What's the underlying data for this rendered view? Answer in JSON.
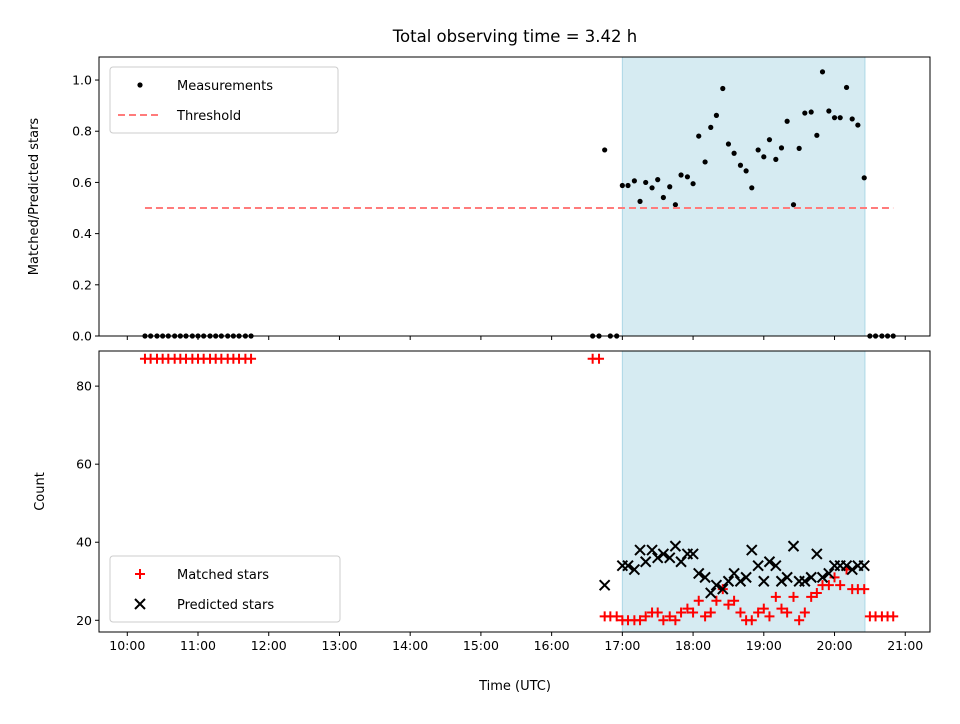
{
  "chart_data": {
    "title": "Total observing time = 3.42 h",
    "xlabel": "Time (UTC)",
    "x_unit": "hours UTC",
    "xlim": [
      9.6,
      21.35
    ],
    "x_ticks": [
      10,
      11,
      12,
      13,
      14,
      15,
      16,
      17,
      18,
      19,
      20,
      21
    ],
    "x_tick_labels": [
      "10:00",
      "11:00",
      "12:00",
      "13:00",
      "14:00",
      "15:00",
      "16:00",
      "17:00",
      "18:00",
      "19:00",
      "20:00",
      "21:00"
    ],
    "span": {
      "x0": 17.0,
      "x1": 20.43,
      "color": "#add8e6"
    },
    "panels": [
      {
        "type": "scatter",
        "ylabel": "Matched/Predicted stars",
        "ylim": [
          0,
          1.09
        ],
        "y_ticks": [
          0.0,
          0.2,
          0.4,
          0.6,
          0.8,
          1.0
        ],
        "y_tick_labels": [
          "0.0",
          "0.2",
          "0.4",
          "0.6",
          "0.8",
          "1.0"
        ],
        "legend_loc": "upper-left",
        "series": [
          {
            "name": "Measurements",
            "kind": "points",
            "color": "#000000",
            "x": [
              10.25,
              10.33,
              10.42,
              10.5,
              10.58,
              10.67,
              10.75,
              10.83,
              10.92,
              11.0,
              11.08,
              11.17,
              11.25,
              11.33,
              11.42,
              11.5,
              11.58,
              11.67,
              11.75,
              16.58,
              16.67,
              16.75,
              16.83,
              16.92,
              17.0,
              17.08,
              17.17,
              17.25,
              17.33,
              17.42,
              17.5,
              17.58,
              17.67,
              17.75,
              17.83,
              17.92,
              18.0,
              18.08,
              18.17,
              18.25,
              18.33,
              18.42,
              18.5,
              18.58,
              18.67,
              18.75,
              18.83,
              18.92,
              19.0,
              19.08,
              19.17,
              19.25,
              19.33,
              19.42,
              19.5,
              19.58,
              19.67,
              19.75,
              19.83,
              19.92,
              20.0,
              20.08,
              20.17,
              20.25,
              20.33,
              20.42,
              20.5,
              20.58,
              20.67,
              20.75,
              20.83
            ],
            "y": [
              0,
              0,
              0,
              0,
              0,
              0,
              0,
              0,
              0,
              0,
              0,
              0,
              0,
              0,
              0,
              0,
              0,
              0,
              0,
              0,
              0,
              0.727,
              0,
              0,
              0.588,
              0.588,
              0.606,
              0.526,
              0.6,
              0.579,
              0.611,
              0.541,
              0.583,
              0.513,
              0.629,
              0.622,
              0.595,
              0.781,
              0.68,
              0.815,
              0.862,
              0.967,
              0.75,
              0.714,
              0.667,
              0.645,
              0.579,
              0.727,
              0.7,
              0.767,
              0.69,
              0.735,
              0.839,
              0.513,
              0.733,
              0.871,
              0.875,
              0.784,
              1.032,
              0.879,
              0.853,
              0.853,
              0.971,
              0.848,
              0.824,
              0.618,
              0,
              0,
              0,
              0,
              0
            ]
          },
          {
            "name": "Threshold",
            "kind": "dashed-line",
            "color": "#ff7b7b",
            "x": [
              10.25,
              20.83
            ],
            "y": [
              0.5,
              0.5
            ]
          }
        ]
      },
      {
        "type": "scatter",
        "ylabel": "Count",
        "ylim": [
          17.0,
          89.0
        ],
        "y_ticks": [
          20,
          40,
          60,
          80
        ],
        "y_tick_labels": [
          "20",
          "40",
          "60",
          "80"
        ],
        "legend_loc": "lower-left",
        "series": [
          {
            "name": "Matched stars",
            "kind": "plus",
            "color": "#ff0000",
            "x": [
              10.25,
              10.33,
              10.42,
              10.5,
              10.58,
              10.67,
              10.75,
              10.83,
              10.92,
              11.0,
              11.08,
              11.17,
              11.25,
              11.33,
              11.42,
              11.5,
              11.58,
              11.67,
              11.75,
              16.58,
              16.67,
              16.75,
              16.83,
              16.92,
              17.0,
              17.08,
              17.17,
              17.25,
              17.33,
              17.42,
              17.5,
              17.58,
              17.67,
              17.75,
              17.83,
              17.92,
              18.0,
              18.08,
              18.17,
              18.25,
              18.33,
              18.42,
              18.5,
              18.58,
              18.67,
              18.75,
              18.83,
              18.92,
              19.0,
              19.08,
              19.17,
              19.25,
              19.33,
              19.42,
              19.5,
              19.58,
              19.67,
              19.75,
              19.83,
              19.92,
              20.0,
              20.08,
              20.17,
              20.25,
              20.33,
              20.42,
              20.5,
              20.58,
              20.67,
              20.75,
              20.83
            ],
            "y": [
              87,
              87,
              87,
              87,
              87,
              87,
              87,
              87,
              87,
              87,
              87,
              87,
              87,
              87,
              87,
              87,
              87,
              87,
              87,
              87,
              87,
              21,
              21,
              21,
              20,
              20,
              20,
              20,
              21,
              22,
              22,
              20,
              21,
              20,
              22,
              23,
              22,
              25,
              21,
              22,
              25,
              28,
              24,
              25,
              22,
              20,
              20,
              22,
              23,
              21,
              26,
              23,
              22,
              26,
              20,
              22,
              26,
              27,
              29,
              29,
              31,
              29,
              33,
              28,
              28,
              28,
              21,
              21,
              21,
              21,
              21
            ]
          },
          {
            "name": "Predicted stars",
            "kind": "x",
            "color": "#000000",
            "x": [
              16.75,
              17.0,
              17.08,
              17.17,
              17.25,
              17.33,
              17.42,
              17.5,
              17.58,
              17.67,
              17.75,
              17.83,
              17.92,
              18.0,
              18.08,
              18.17,
              18.25,
              18.33,
              18.42,
              18.5,
              18.58,
              18.67,
              18.75,
              18.83,
              18.92,
              19.0,
              19.08,
              19.17,
              19.25,
              19.33,
              19.42,
              19.5,
              19.58,
              19.67,
              19.75,
              19.83,
              19.92,
              20.0,
              20.08,
              20.17,
              20.25,
              20.33,
              20.42
            ],
            "y": [
              29,
              34,
              34,
              33,
              38,
              35,
              38,
              36,
              37,
              36,
              39,
              35,
              37,
              37,
              32,
              31,
              27,
              29,
              28,
              30,
              32,
              30,
              31,
              38,
              34,
              30,
              35,
              34,
              30,
              31,
              39,
              30,
              30,
              31,
              37,
              31,
              32,
              34,
              34,
              34,
              33,
              34,
              34
            ]
          }
        ]
      }
    ]
  }
}
